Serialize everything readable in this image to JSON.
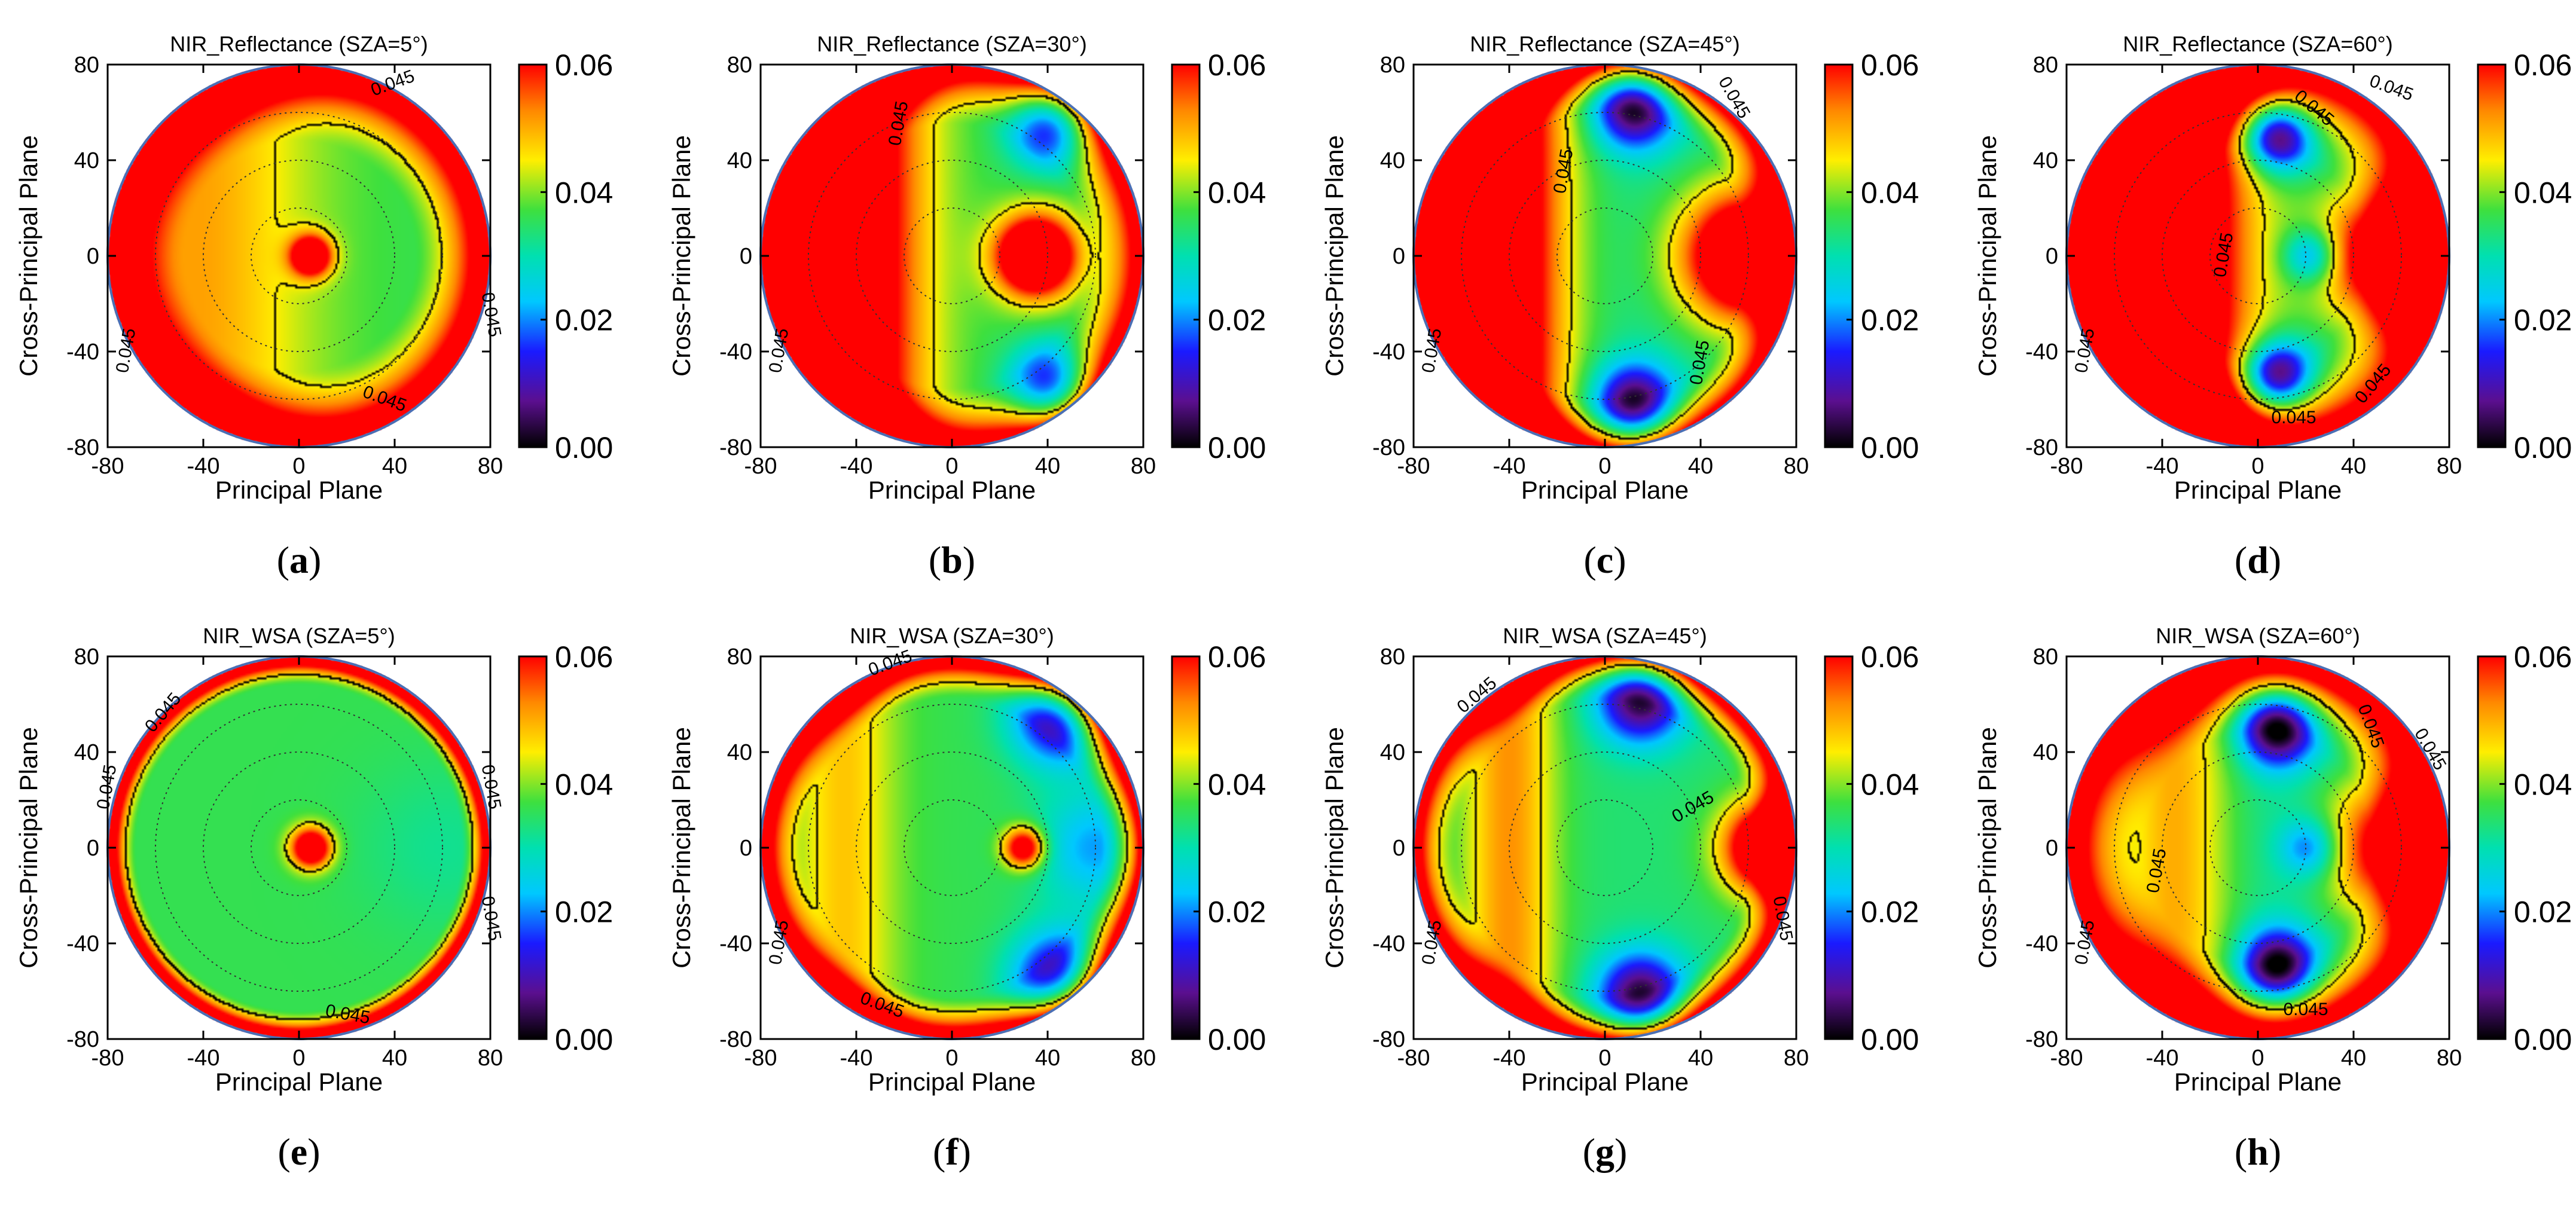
{
  "colormap": {
    "stops": [
      [
        0.0,
        "#000000"
      ],
      [
        0.12,
        "#5b0f8f"
      ],
      [
        0.25,
        "#1a1aff"
      ],
      [
        0.38,
        "#00c8ff"
      ],
      [
        0.5,
        "#00e0b0"
      ],
      [
        0.62,
        "#3ee03e"
      ],
      [
        0.75,
        "#ffee00"
      ],
      [
        0.88,
        "#ff8800"
      ],
      [
        1.0,
        "#ff0000"
      ]
    ],
    "outline_color": "#4a6fb5",
    "contour_color": "#000000",
    "grid_color": "#333333"
  },
  "chart_data": [
    {
      "id": "a",
      "type": "heatmap",
      "caption": "a",
      "title": "NIR_Reflectance (SZA=5°)",
      "xlabel": "Principal Plane",
      "ylabel": "Cross-Principal Plane",
      "xlim": [
        -80,
        80
      ],
      "ylim": [
        -80,
        80
      ],
      "xticks": [
        "-80",
        "-40",
        "0",
        "40",
        "80"
      ],
      "yticks": [
        "80",
        "40",
        "0",
        "-40",
        "-80"
      ],
      "colorbar": {
        "range": [
          0.0,
          0.06
        ],
        "ticks": [
          "0.06",
          "0.04",
          "0.02",
          "0.00"
        ]
      },
      "contour_level": 0.045,
      "contour_labels": [
        {
          "text": "0.045",
          "x": 40,
          "y": 70,
          "angle": -20
        },
        {
          "text": "0.045",
          "x": 78,
          "y": -25,
          "angle": 80
        },
        {
          "text": "0.045",
          "x": 35,
          "y": -62,
          "angle": 20
        },
        {
          "text": "0.045",
          "x": -70,
          "y": -40,
          "angle": -80
        }
      ],
      "field": {
        "base": 0.036,
        "rim": 0.075,
        "rim_start": 48,
        "hotspot": {
          "x": 5,
          "y": 0,
          "amp": 0.04,
          "sigma": 6
        },
        "forward": {
          "x": -45,
          "amp": 0.015,
          "sigma": 35
        },
        "lows": []
      }
    },
    {
      "id": "b",
      "type": "heatmap",
      "caption": "b",
      "title": "NIR_Reflectance (SZA=30°)",
      "xlabel": "Principal Plane",
      "ylabel": "Cross-Principal Plane",
      "xlim": [
        -80,
        80
      ],
      "ylim": [
        -80,
        80
      ],
      "xticks": [
        "-80",
        "-40",
        "0",
        "40",
        "80"
      ],
      "yticks": [
        "80",
        "40",
        "0",
        "-40",
        "-80"
      ],
      "colorbar": {
        "range": [
          0.0,
          0.06
        ],
        "ticks": [
          "0.06",
          "0.04",
          "0.02",
          "0.00"
        ]
      },
      "contour_level": 0.045,
      "contour_labels": [
        {
          "text": "0.045",
          "x": -20,
          "y": 55,
          "angle": -80
        },
        {
          "text": "0.045",
          "x": -70,
          "y": -40,
          "angle": -80
        }
      ],
      "field": {
        "base": 0.036,
        "rim": 0.07,
        "rim_start": 55,
        "hotspot": {
          "x": 35,
          "y": 0,
          "amp": 0.05,
          "sigma": 12
        },
        "forward": {
          "x": -45,
          "amp": 0.04,
          "sigma": 22
        },
        "lows": [
          {
            "x": 42,
            "y": 55,
            "amp": 0.03,
            "sigma": 12
          },
          {
            "x": 42,
            "y": -55,
            "amp": 0.03,
            "sigma": 12
          }
        ]
      }
    },
    {
      "id": "c",
      "type": "heatmap",
      "caption": "c",
      "title": "NIR_Reflectance (SZA=45°)",
      "xlabel": "Principal Plane",
      "ylabel": "Cross-Principal Plane",
      "xlim": [
        -80,
        80
      ],
      "ylim": [
        -80,
        80
      ],
      "xticks": [
        "-80",
        "-40",
        "0",
        "40",
        "80"
      ],
      "yticks": [
        "80",
        "40",
        "0",
        "-40",
        "-80"
      ],
      "colorbar": {
        "range": [
          0.0,
          0.06
        ],
        "ticks": [
          "0.06",
          "0.04",
          "0.02",
          "0.00"
        ]
      },
      "contour_level": 0.045,
      "contour_labels": [
        {
          "text": "0.045",
          "x": 52,
          "y": 65,
          "angle": 60
        },
        {
          "text": "0.045",
          "x": -15,
          "y": 35,
          "angle": -80
        },
        {
          "text": "0.045",
          "x": 42,
          "y": -45,
          "angle": -80
        },
        {
          "text": "0.045",
          "x": -70,
          "y": -40,
          "angle": -80
        }
      ],
      "field": {
        "base": 0.032,
        "rim": 0.065,
        "rim_start": 60,
        "hotspot": {
          "x": 60,
          "y": 0,
          "amp": 0.05,
          "sigma": 20
        },
        "forward": {
          "x": -50,
          "amp": 0.05,
          "sigma": 22
        },
        "lows": [
          {
            "x": 12,
            "y": 62,
            "amp": 0.032,
            "sigma": 12
          },
          {
            "x": 12,
            "y": -62,
            "amp": 0.032,
            "sigma": 12
          }
        ]
      }
    },
    {
      "id": "d",
      "type": "heatmap",
      "caption": "d",
      "title": "NIR_Reflectance (SZA=60°)",
      "xlabel": "Principal Plane",
      "ylabel": "Cross-Principal Plane",
      "xlim": [
        -80,
        80
      ],
      "ylim": [
        -80,
        80
      ],
      "xticks": [
        "-80",
        "-40",
        "0",
        "40",
        "80"
      ],
      "yticks": [
        "80",
        "40",
        "0",
        "-40",
        "-80"
      ],
      "colorbar": {
        "range": [
          0.0,
          0.06
        ],
        "ticks": [
          "0.06",
          "0.04",
          "0.02",
          "0.00"
        ]
      },
      "contour_level": 0.045,
      "contour_labels": [
        {
          "text": "0.045",
          "x": 55,
          "y": 68,
          "angle": 20
        },
        {
          "text": "0.045",
          "x": 22,
          "y": 60,
          "angle": 40
        },
        {
          "text": "0.045",
          "x": -12,
          "y": 0,
          "angle": -80
        },
        {
          "text": "0.045",
          "x": 50,
          "y": -55,
          "angle": -50
        },
        {
          "text": "0.045",
          "x": 15,
          "y": -70,
          "angle": 0
        },
        {
          "text": "0.045",
          "x": -70,
          "y": -40,
          "angle": -80
        }
      ],
      "field": {
        "base": 0.03,
        "rim": 0.07,
        "rim_start": 45,
        "hotspot": {
          "x": 60,
          "y": 0,
          "amp": 0.05,
          "sigma": 22
        },
        "forward": {
          "x": -45,
          "amp": 0.06,
          "sigma": 28
        },
        "lows": [
          {
            "x": 8,
            "y": 50,
            "amp": 0.035,
            "sigma": 10
          },
          {
            "x": 8,
            "y": -50,
            "amp": 0.035,
            "sigma": 10
          },
          {
            "x": 22,
            "y": 0,
            "amp": 0.02,
            "sigma": 8
          }
        ]
      }
    },
    {
      "id": "e",
      "type": "heatmap",
      "caption": "e",
      "title": "NIR_WSA (SZA=5°)",
      "xlabel": "Principal Plane",
      "ylabel": "Cross-Principal Plane",
      "xlim": [
        -80,
        80
      ],
      "ylim": [
        -80,
        80
      ],
      "xticks": [
        "-80",
        "-40",
        "0",
        "40",
        "80"
      ],
      "yticks": [
        "80",
        "40",
        "0",
        "-40",
        "-80"
      ],
      "colorbar": {
        "range": [
          0.0,
          0.06
        ],
        "ticks": [
          "0.06",
          "0.04",
          "0.02",
          "0.00"
        ]
      },
      "contour_level": 0.045,
      "contour_labels": [
        {
          "text": "0.045",
          "x": -55,
          "y": 55,
          "angle": -50
        },
        {
          "text": "0.045",
          "x": -78,
          "y": 25,
          "angle": -80
        },
        {
          "text": "0.045",
          "x": 78,
          "y": 25,
          "angle": 80
        },
        {
          "text": "0.045",
          "x": 78,
          "y": -30,
          "angle": 80
        },
        {
          "text": "0.045",
          "x": 20,
          "y": -72,
          "angle": 10
        }
      ],
      "field": {
        "base": 0.036,
        "rim": 0.08,
        "rim_start": 68,
        "hotspot": {
          "x": 5,
          "y": 0,
          "amp": 0.04,
          "sigma": 6
        },
        "forward": {
          "x": 0,
          "amp": 0.0,
          "sigma": 30
        },
        "lows": [
          {
            "x": 60,
            "y": 0,
            "amp": 0.004,
            "sigma": 25
          }
        ]
      }
    },
    {
      "id": "f",
      "type": "heatmap",
      "caption": "f",
      "title": "NIR_WSA (SZA=30°)",
      "xlabel": "Principal Plane",
      "ylabel": "Cross-Principal Plane",
      "xlim": [
        -80,
        80
      ],
      "ylim": [
        -80,
        80
      ],
      "xticks": [
        "-80",
        "-40",
        "0",
        "40",
        "80"
      ],
      "yticks": [
        "80",
        "40",
        "0",
        "-40",
        "-80"
      ],
      "colorbar": {
        "range": [
          0.0,
          0.06
        ],
        "ticks": [
          "0.06",
          "0.04",
          "0.02",
          "0.00"
        ]
      },
      "contour_level": 0.045,
      "contour_labels": [
        {
          "text": "0.045",
          "x": -25,
          "y": 75,
          "angle": -20
        },
        {
          "text": "0.045",
          "x": -30,
          "y": -68,
          "angle": 20
        },
        {
          "text": "0.045",
          "x": -70,
          "y": -40,
          "angle": -80
        }
      ],
      "field": {
        "base": 0.036,
        "rim": 0.075,
        "rim_start": 62,
        "hotspot": {
          "x": 30,
          "y": 0,
          "amp": 0.035,
          "sigma": 6
        },
        "forward": {
          "x": -45,
          "amp": 0.012,
          "sigma": 15
        },
        "lows": [
          {
            "x": 45,
            "y": 55,
            "amp": 0.03,
            "sigma": 14
          },
          {
            "x": 45,
            "y": -55,
            "amp": 0.03,
            "sigma": 14
          },
          {
            "x": 60,
            "y": 0,
            "amp": 0.015,
            "sigma": 18
          }
        ]
      }
    },
    {
      "id": "g",
      "type": "heatmap",
      "caption": "g",
      "title": "NIR_WSA (SZA=45°)",
      "xlabel": "Principal Plane",
      "ylabel": "Cross-Principal Plane",
      "xlim": [
        -80,
        80
      ],
      "ylim": [
        -80,
        80
      ],
      "xticks": [
        "-80",
        "-40",
        "0",
        "40",
        "80"
      ],
      "yticks": [
        "80",
        "40",
        "0",
        "-40",
        "-80"
      ],
      "colorbar": {
        "range": [
          0.0,
          0.06
        ],
        "ticks": [
          "0.06",
          "0.04",
          "0.02",
          "0.00"
        ]
      },
      "contour_level": 0.045,
      "contour_labels": [
        {
          "text": "0.045",
          "x": -52,
          "y": 62,
          "angle": -40
        },
        {
          "text": "0.045",
          "x": 38,
          "y": 15,
          "angle": -30
        },
        {
          "text": "0.045",
          "x": 72,
          "y": -30,
          "angle": 80
        },
        {
          "text": "0.045",
          "x": -70,
          "y": -40,
          "angle": -80
        }
      ],
      "field": {
        "base": 0.034,
        "rim": 0.07,
        "rim_start": 62,
        "hotspot": {
          "x": 70,
          "y": 0,
          "amp": 0.05,
          "sigma": 14
        },
        "forward": {
          "x": -40,
          "amp": 0.018,
          "sigma": 14
        },
        "lows": [
          {
            "x": 15,
            "y": 62,
            "amp": 0.032,
            "sigma": 13
          },
          {
            "x": 15,
            "y": -62,
            "amp": 0.032,
            "sigma": 13
          }
        ]
      }
    },
    {
      "id": "h",
      "type": "heatmap",
      "caption": "h",
      "title": "NIR_WSA (SZA=60°)",
      "xlabel": "Principal Plane",
      "ylabel": "Cross-Principal Plane",
      "xlim": [
        -80,
        80
      ],
      "ylim": [
        -80,
        80
      ],
      "xticks": [
        "-80",
        "-40",
        "0",
        "40",
        "80"
      ],
      "yticks": [
        "80",
        "40",
        "0",
        "-40",
        "-80"
      ],
      "colorbar": {
        "range": [
          0.0,
          0.06
        ],
        "ticks": [
          "0.06",
          "0.04",
          "0.02",
          "0.00"
        ]
      },
      "contour_level": 0.045,
      "contour_labels": [
        {
          "text": "0.045",
          "x": 45,
          "y": 50,
          "angle": 70
        },
        {
          "text": "0.045",
          "x": 70,
          "y": 40,
          "angle": 60
        },
        {
          "text": "0.045",
          "x": -40,
          "y": -10,
          "angle": -80
        },
        {
          "text": "0.045",
          "x": 20,
          "y": -70,
          "angle": 0
        },
        {
          "text": "0.045",
          "x": -70,
          "y": -40,
          "angle": -80
        }
      ],
      "field": {
        "base": 0.03,
        "rim": 0.075,
        "rim_start": 48,
        "hotspot": {
          "x": 60,
          "y": 0,
          "amp": 0.04,
          "sigma": 22
        },
        "forward": {
          "x": -35,
          "amp": 0.02,
          "sigma": 18
        },
        "lows": [
          {
            "x": 8,
            "y": 50,
            "amp": 0.034,
            "sigma": 11
          },
          {
            "x": 8,
            "y": -50,
            "amp": 0.034,
            "sigma": 11
          },
          {
            "x": 22,
            "y": 0,
            "amp": 0.018,
            "sigma": 9
          }
        ]
      }
    }
  ]
}
